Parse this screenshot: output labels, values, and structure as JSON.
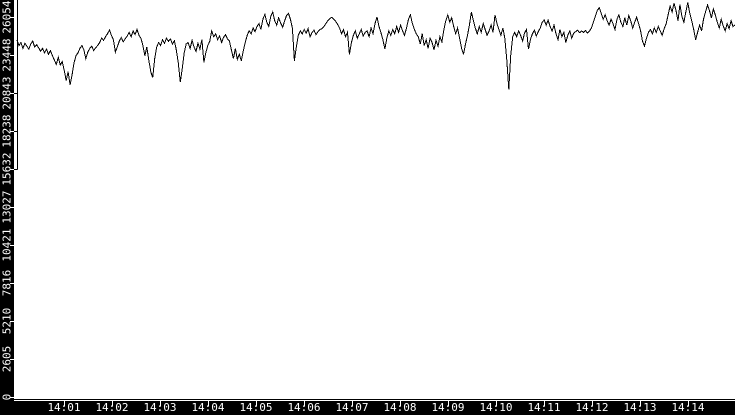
{
  "colors": {
    "background": "#ffffff",
    "gutter": "#000000",
    "label_text": "#ffffff",
    "line": "#000000"
  },
  "chart_data": {
    "type": "line",
    "title": "",
    "xlabel": "",
    "ylabel": "",
    "grid": false,
    "legend": false,
    "x_start": "14:00",
    "x_end": "14:15",
    "x_tick_labels": [
      "14:01",
      "14:02",
      "14:03",
      "14:04",
      "14:05",
      "14:06",
      "14:07",
      "14:08",
      "14:09",
      "14:10",
      "14:11",
      "14:12",
      "14:13",
      "14:14"
    ],
    "y_tick_labels": [
      "0",
      "2605",
      "5210",
      "7816",
      "10421",
      "13027",
      "15632",
      "18238",
      "20843",
      "23448",
      "26054"
    ],
    "ylim": [
      0,
      26054
    ],
    "series": [
      {
        "values": [
          24470,
          24100,
          24300,
          23900,
          24250,
          24060,
          23850,
          24200,
          24400,
          24000,
          24150,
          23950,
          23700,
          23900,
          23600,
          23850,
          23500,
          23750,
          23400,
          23100,
          22800,
          23300,
          22760,
          23000,
          22400,
          21700,
          22300,
          21400,
          22100,
          22900,
          23400,
          23600,
          23900,
          24100,
          23800,
          23200,
          23650,
          23900,
          24050,
          23750,
          23950,
          24100,
          24300,
          24600,
          24450,
          24700,
          24900,
          25160,
          24800,
          24500,
          23650,
          24000,
          24400,
          24650,
          24350,
          24550,
          24750,
          25000,
          24700,
          25100,
          24850,
          25200,
          24800,
          24600,
          24100,
          23400,
          24000,
          23100,
          22300,
          21900,
          23200,
          24000,
          24300,
          24100,
          24500,
          24250,
          24600,
          24380,
          24550,
          24200,
          24420,
          23800,
          22900,
          21600,
          22500,
          23600,
          24200,
          24300,
          23900,
          24450,
          24000,
          23700,
          24250,
          23850,
          24500,
          22950,
          23600,
          24100,
          24400,
          25100,
          24700,
          24900,
          24500,
          24750,
          24300,
          24650,
          24850,
          24550,
          24400,
          23800,
          23200,
          23900,
          23150,
          23500,
          23050,
          23700,
          24300,
          24800,
          25100,
          24900,
          25300,
          25050,
          25400,
          25600,
          25200,
          25900,
          26230,
          25700,
          25400,
          26100,
          26400,
          25800,
          25500,
          26000,
          25650,
          25350,
          25750,
          26150,
          26300,
          25900,
          25300,
          23050,
          24000,
          24800,
          25100,
          24900,
          25200,
          24950,
          25250,
          24700,
          25000,
          25150,
          24850,
          25050,
          25200,
          25250,
          25400,
          25600,
          25800,
          25950,
          26030,
          25900,
          25750,
          25550,
          25300,
          24900,
          25200,
          24700,
          25000,
          23500,
          24300,
          24800,
          25100,
          24600,
          24900,
          25200,
          24750,
          25000,
          25100,
          24700,
          25300,
          24900,
          25600,
          26060,
          25400,
          25000,
          24500,
          23850,
          24600,
          25100,
          24800,
          25200,
          24900,
          25400,
          25000,
          25500,
          25100,
          24800,
          25300,
          25900,
          26200,
          25600,
          25200,
          24900,
          24700,
          24200,
          24900,
          24100,
          24500,
          23900,
          24600,
          24300,
          23800,
          24450,
          24050,
          24700,
          24350,
          25200,
          25800,
          26190,
          25700,
          26000,
          25400,
          24900,
          25300,
          24600,
          23900,
          23500,
          24200,
          24800,
          25500,
          26400,
          25800,
          25300,
          24900,
          25400,
          25000,
          25600,
          25200,
          24800,
          25100,
          25500,
          25000,
          26200,
          25600,
          25200,
          24800,
          25300,
          24600,
          23100,
          21100,
          23400,
          24700,
          25000,
          24700,
          25100,
          24800,
          24400,
          24950,
          25200,
          23850,
          24500,
          24900,
          25150,
          24750,
          25050,
          25300,
          25700,
          25850,
          25500,
          25840,
          25400,
          25100,
          25500,
          24900,
          24500,
          25200,
          24700,
          25000,
          24300,
          24800,
          25100,
          24600,
          24950,
          25050,
          25150,
          24980,
          25100,
          25000,
          25120,
          24950,
          25080,
          25300,
          25700,
          26100,
          26500,
          26700,
          26300,
          25900,
          26200,
          25800,
          25500,
          25900,
          25600,
          25200,
          25900,
          26200,
          25700,
          25400,
          26000,
          25500,
          26150,
          25800,
          25300,
          25700,
          26050,
          25600,
          25100,
          24400,
          24050,
          24600,
          25000,
          25200,
          24900,
          25300,
          25000,
          25400,
          25100,
          24800,
          25250,
          25600,
          26200,
          26800,
          26400,
          27000,
          26500,
          25800,
          26900,
          26100,
          25700,
          26400,
          27050,
          26300,
          25800,
          25200,
          24500,
          25000,
          25500,
          25100,
          25900,
          26400,
          26880,
          26500,
          26000,
          26600,
          26200,
          25700,
          25300,
          25900,
          25450,
          25100,
          25600,
          25250,
          25800,
          25400,
          25500
        ]
      }
    ]
  }
}
